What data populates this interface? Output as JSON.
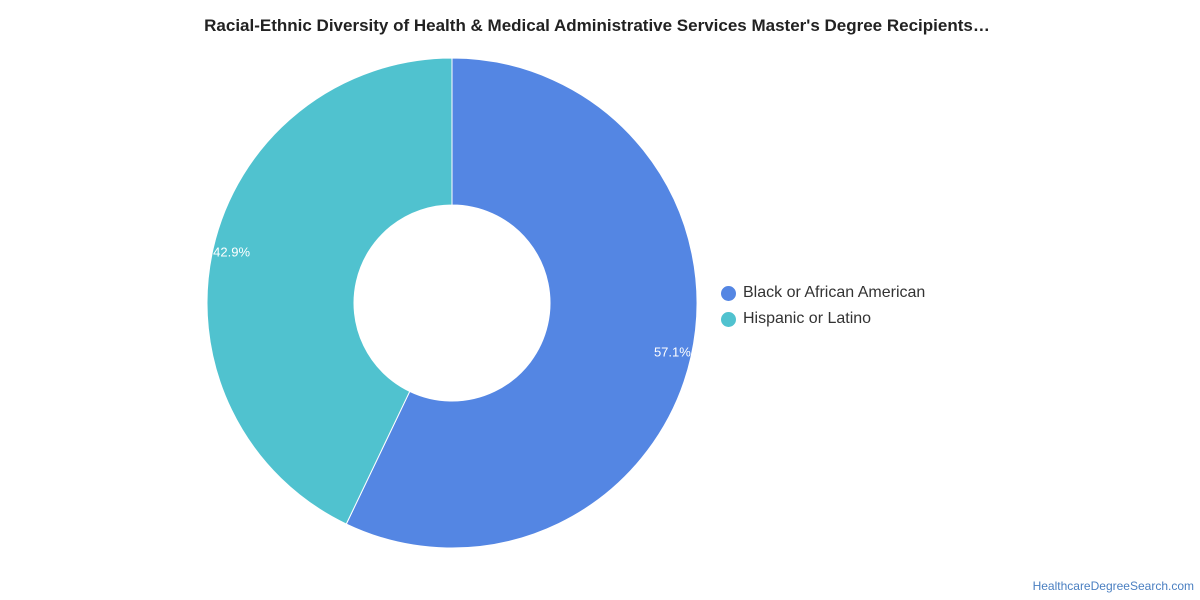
{
  "chart_data": {
    "type": "pie",
    "title": "Racial-Ethnic Diversity of Health & Medical Administrative Services Master's Degree Recipients…",
    "series": [
      {
        "name": "Black or African American",
        "value": 57.1,
        "label": "57.1%",
        "color": "#5486e3"
      },
      {
        "name": "Hispanic or Latino",
        "value": 42.9,
        "label": "42.9%",
        "color": "#50c2cf"
      }
    ],
    "legend_position": "right"
  },
  "footer": {
    "source_link": "HealthcareDegreeSearch.com"
  }
}
